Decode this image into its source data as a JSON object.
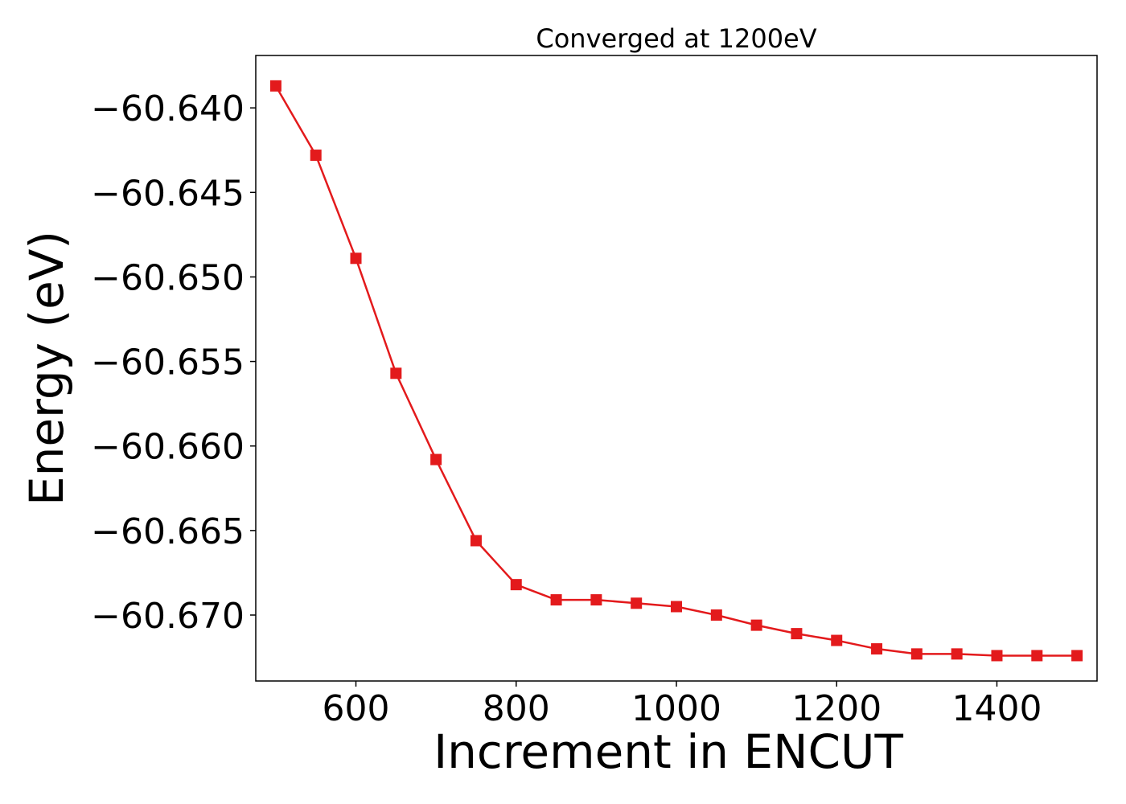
{
  "chart_data": {
    "type": "line",
    "title": "Converged at 1200eV",
    "xlabel": "Increment in ENCUT",
    "ylabel": "Energy (eV)",
    "xlim": [
      475,
      1525
    ],
    "ylim": [
      -60.6739,
      -60.6369
    ],
    "x_ticks": [
      600,
      800,
      1000,
      1200,
      1400
    ],
    "x_tick_labels": [
      "600",
      "800",
      "1000",
      "1200",
      "1400"
    ],
    "y_ticks": [
      -60.64,
      -60.645,
      -60.65,
      -60.655,
      -60.66,
      -60.665,
      -60.67
    ],
    "y_tick_labels": [
      "−60.640",
      "−60.645",
      "−60.650",
      "−60.655",
      "−60.660",
      "−60.665",
      "−60.670"
    ],
    "grid": false,
    "series": [
      {
        "color": "#e31a1c",
        "marker": "square",
        "x": [
          500,
          550,
          600,
          650,
          700,
          750,
          800,
          850,
          900,
          950,
          1000,
          1050,
          1100,
          1150,
          1200,
          1250,
          1300,
          1350,
          1400,
          1450,
          1500
        ],
        "y": [
          -60.6387,
          -60.6428,
          -60.6489,
          -60.6557,
          -60.6608,
          -60.6656,
          -60.6682,
          -60.6691,
          -60.6691,
          -60.6693,
          -60.6695,
          -60.67,
          -60.6706,
          -60.6711,
          -60.6715,
          -60.672,
          -60.6723,
          -60.6723,
          -60.6724,
          -60.6724,
          -60.6724
        ]
      }
    ]
  }
}
